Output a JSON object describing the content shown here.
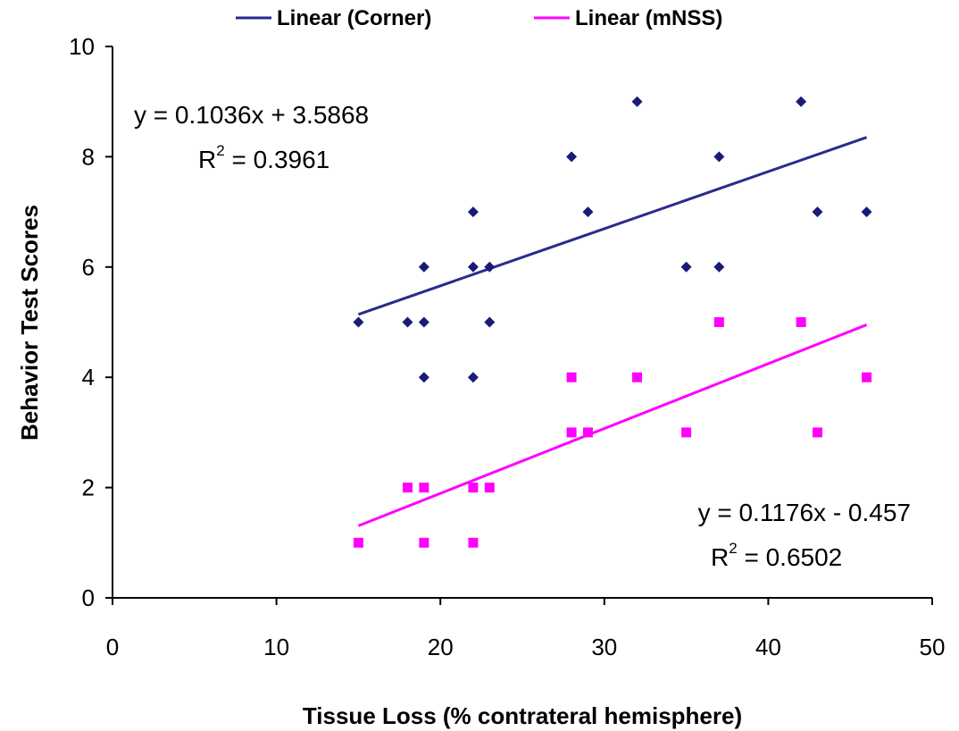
{
  "chart_data": {
    "type": "scatter",
    "xlabel": "Tissue Loss (% contrateral hemisphere)",
    "ylabel": "Behavior Test Scores",
    "xlim": [
      0,
      50
    ],
    "ylim": [
      0,
      10
    ],
    "xticks": [
      0,
      10,
      20,
      30,
      40,
      50
    ],
    "yticks": [
      0,
      2,
      4,
      6,
      8,
      10
    ],
    "grid": false,
    "legend_position": "top",
    "series": [
      {
        "name": "Corner",
        "marker": "diamond",
        "color": "#1a1a7a",
        "points": [
          [
            15,
            5
          ],
          [
            18,
            5
          ],
          [
            19,
            6
          ],
          [
            19,
            5
          ],
          [
            19,
            4
          ],
          [
            22,
            7
          ],
          [
            22,
            6
          ],
          [
            22,
            4
          ],
          [
            23,
            6
          ],
          [
            23,
            5
          ],
          [
            28,
            8
          ],
          [
            29,
            7
          ],
          [
            32,
            9
          ],
          [
            35,
            6
          ],
          [
            37,
            8
          ],
          [
            37,
            6
          ],
          [
            42,
            9
          ],
          [
            43,
            7
          ],
          [
            46,
            7
          ]
        ],
        "trendline": {
          "label": "Linear (Corner)",
          "color": "#2b2b8c",
          "slope": 0.1036,
          "intercept": 3.5868,
          "x_range": [
            15,
            46
          ],
          "equation": "y = 0.1036x + 3.5868",
          "r2_prefix": "R",
          "r2_exponent": "2",
          "r2_value": " = 0.3961"
        }
      },
      {
        "name": "mNSS",
        "marker": "square",
        "color": "#ff00ff",
        "points": [
          [
            15,
            1
          ],
          [
            18,
            2
          ],
          [
            19,
            2
          ],
          [
            19,
            1
          ],
          [
            22,
            2
          ],
          [
            22,
            1
          ],
          [
            23,
            2
          ],
          [
            28,
            4
          ],
          [
            28,
            3
          ],
          [
            29,
            3
          ],
          [
            32,
            4
          ],
          [
            35,
            3
          ],
          [
            37,
            5
          ],
          [
            42,
            5
          ],
          [
            43,
            3
          ],
          [
            46,
            4
          ]
        ],
        "trendline": {
          "label": "Linear (mNSS)",
          "color": "#ff00ff",
          "slope": 0.1176,
          "intercept": -0.457,
          "x_range": [
            15,
            46
          ],
          "equation": "y = 0.1176x - 0.457",
          "r2_prefix": "R",
          "r2_exponent": "2",
          "r2_value": " = 0.6502"
        }
      }
    ]
  }
}
